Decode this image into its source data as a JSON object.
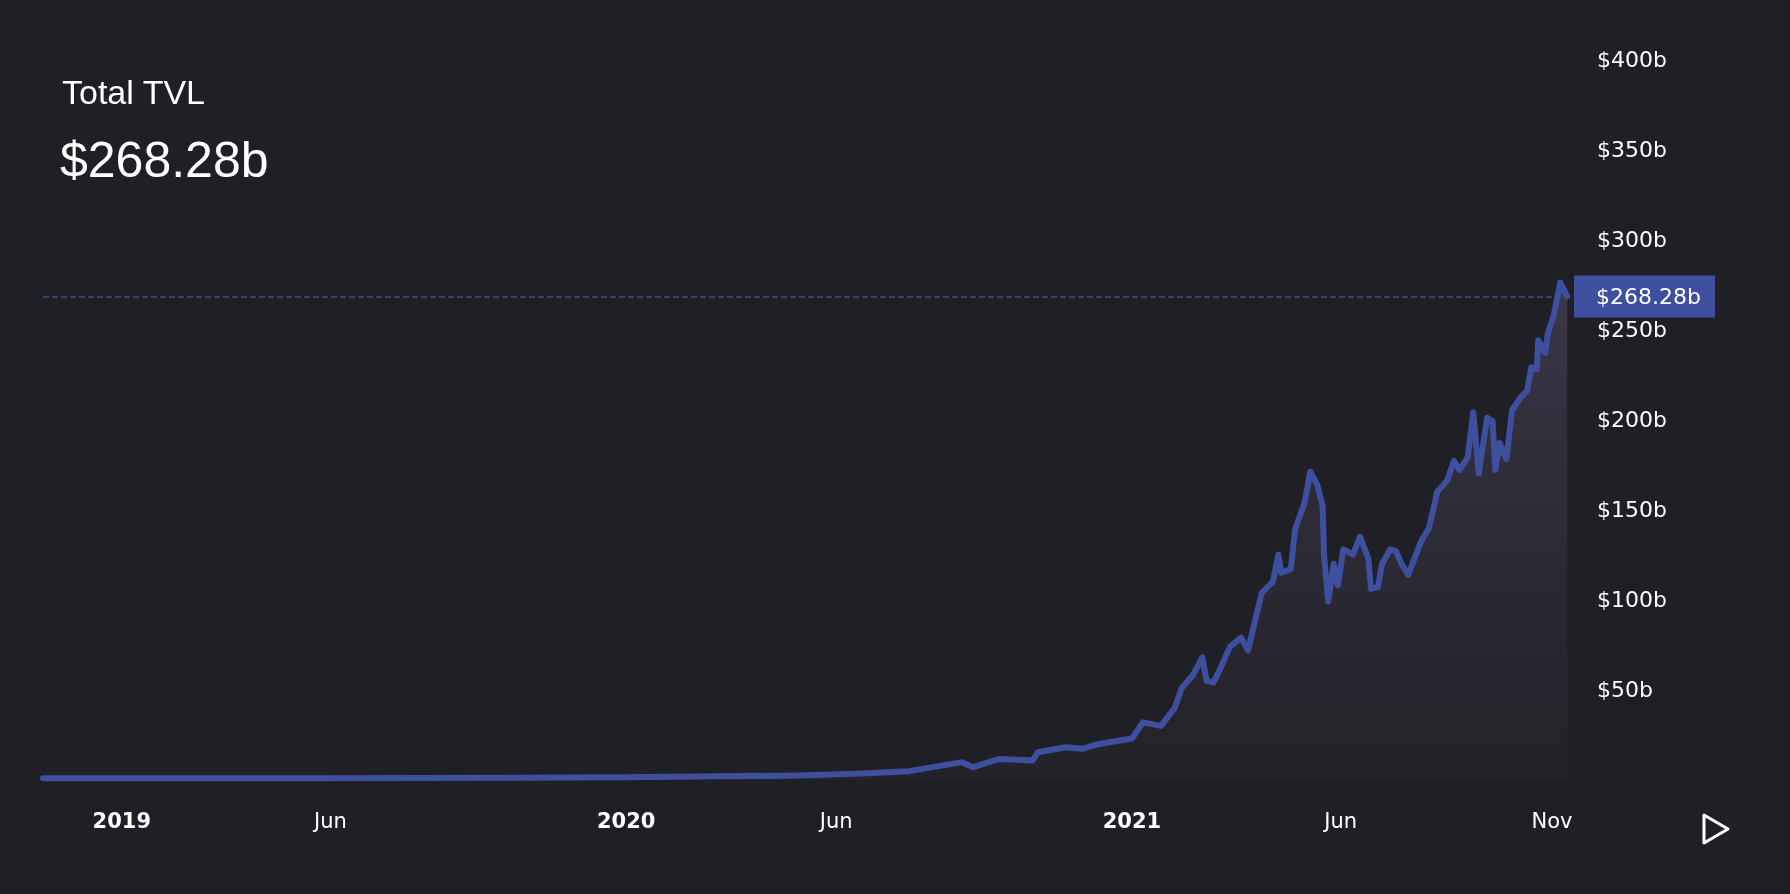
{
  "chart_data": {
    "type": "area",
    "title": "Total TVL",
    "subtitle": "$268.28b",
    "x": [
      "2018-11-05",
      "2019-06-01",
      "2020-01-01",
      "2020-05-05",
      "2020-06-15",
      "2020-07-24",
      "2020-08-31",
      "2020-09-08",
      "2020-09-27",
      "2020-10-21",
      "2020-10-25",
      "2020-11-14",
      "2020-11-26",
      "2020-12-08",
      "2021-01-01",
      "2021-01-09",
      "2021-01-22",
      "2021-02-01",
      "2021-02-06",
      "2021-02-14",
      "2021-02-21",
      "2021-02-24",
      "2021-03-01",
      "2021-03-06",
      "2021-03-13",
      "2021-03-21",
      "2021-03-26",
      "2021-04-05",
      "2021-04-13",
      "2021-04-17",
      "2021-04-19",
      "2021-04-26",
      "2021-04-29",
      "2021-05-06",
      "2021-05-10",
      "2021-05-15",
      "2021-05-19",
      "2021-05-20",
      "2021-05-23",
      "2021-05-27",
      "2021-05-30",
      "2021-06-03",
      "2021-06-10",
      "2021-06-15",
      "2021-06-21",
      "2021-06-23",
      "2021-06-28",
      "2021-07-01",
      "2021-07-07",
      "2021-07-11",
      "2021-07-15",
      "2021-07-20",
      "2021-07-29",
      "2021-08-04",
      "2021-08-10",
      "2021-08-17",
      "2021-08-22",
      "2021-08-26",
      "2021-09-01",
      "2021-09-05",
      "2021-09-09",
      "2021-09-15",
      "2021-09-19",
      "2021-09-21",
      "2021-09-24",
      "2021-09-29",
      "2021-10-03",
      "2021-10-09",
      "2021-10-14",
      "2021-10-17",
      "2021-10-21",
      "2021-10-22",
      "2021-10-27",
      "2021-10-29",
      "2021-11-02",
      "2021-11-07",
      "2021-11-12"
    ],
    "series": [
      {
        "color": "#3f4f9f",
        "values": [
          1,
          1,
          1.5,
          2.5,
          3.4,
          4.9,
          9.9,
          7.1,
          11.7,
          10.8,
          15.4,
          18.2,
          17.3,
          20,
          23,
          32,
          30,
          40,
          51,
          58,
          68,
          55,
          54,
          62,
          74,
          79,
          72,
          104,
          110,
          125,
          115,
          117,
          139,
          154,
          171,
          164,
          152,
          125,
          99,
          120,
          108,
          128,
          125,
          135,
          123,
          106,
          107,
          120,
          128,
          127,
          120,
          114,
          132,
          140,
          160,
          166,
          177,
          172,
          179,
          204,
          170,
          201,
          199,
          172,
          187,
          178,
          205,
          212,
          216,
          229,
          228,
          244,
          237,
          248,
          257,
          276,
          268.28
        ]
      }
    ],
    "xlim": [
      "2018-11-05",
      "2021-11-14"
    ],
    "xticks": [
      {
        "value": "2019-01-01",
        "label": "2019"
      },
      {
        "value": "2019-06-01",
        "label": "Jun"
      },
      {
        "value": "2020-01-01",
        "label": "2020"
      },
      {
        "value": "2020-06-01",
        "label": "Jun"
      },
      {
        "value": "2021-01-01",
        "label": "2021"
      },
      {
        "value": "2021-06-01",
        "label": "Jun"
      },
      {
        "value": "2021-11-01",
        "label": "Nov"
      }
    ],
    "ylim": [
      0,
      400
    ],
    "yticks": [
      {
        "value": 50,
        "label": "$50b"
      },
      {
        "value": 100,
        "label": "$100b"
      },
      {
        "value": 150,
        "label": "$150b"
      },
      {
        "value": 200,
        "label": "$200b"
      },
      {
        "value": 250,
        "label": "$250b"
      },
      {
        "value": 300,
        "label": "$300b"
      },
      {
        "value": 350,
        "label": "$350b"
      },
      {
        "value": 400,
        "label": "$400b"
      }
    ],
    "ref_lines": [
      {
        "axis": "y",
        "value": 268.28,
        "label": "$268.28b",
        "color": "#3f4f9f",
        "line_style": "dashed"
      }
    ]
  }
}
